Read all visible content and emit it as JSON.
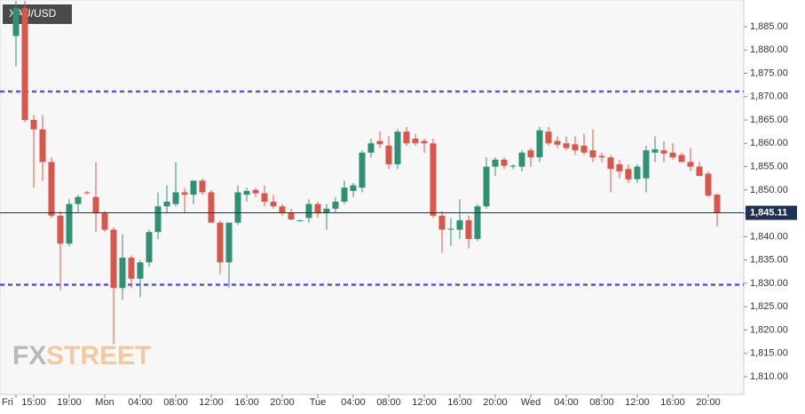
{
  "chart_data": {
    "type": "candlestick",
    "title": "XAU/USD",
    "watermark": {
      "fx": "FX",
      "street": "STREET"
    },
    "categories": [
      "Fri",
      null,
      "15:00",
      null,
      null,
      null,
      "19:00",
      null,
      null,
      null,
      "Mon",
      null,
      null,
      null,
      "04:00",
      null,
      null,
      null,
      "08:00",
      null,
      null,
      null,
      "12:00",
      null,
      null,
      null,
      "16:00",
      null,
      null,
      null,
      "20:00",
      null,
      null,
      null,
      "Tue",
      null,
      null,
      null,
      "04:00",
      null,
      null,
      null,
      "08:00",
      null,
      null,
      null,
      "12:00",
      null,
      null,
      null,
      "16:00",
      null,
      null,
      null,
      "20:00",
      null,
      null,
      null,
      "Wed",
      null,
      null,
      null,
      "04:00",
      null,
      null,
      null,
      "08:00",
      null,
      null,
      null,
      "12:00",
      null,
      null,
      null,
      "16:00",
      null,
      null,
      null,
      "20:00",
      null
    ],
    "open": [
      1883,
      1889,
      1865,
      1863,
      1856,
      1844.5,
      1838.5,
      1847,
      1849.5,
      1848.5,
      1845,
      1841.5,
      1829,
      1835.5,
      1831,
      1834.5,
      1841,
      1846.5,
      1847,
      1849.5,
      1849,
      1852,
      1849.5,
      1843,
      1834.5,
      1843,
      1849,
      1850,
      1849.3,
      1847.5,
      1846.5,
      1845.2,
      1843.4,
      1844,
      1847,
      1845,
      1846,
      1847.5,
      1849.8,
      1850.5,
      1858,
      1860.5,
      1859.5,
      1855.5,
      1862.5,
      1861,
      1860.5,
      1860,
      1844.5,
      1841.5,
      1841.5,
      1843.5,
      1839.5,
      1846.5,
      1855,
      1856.5,
      1855,
      1855,
      1858.5,
      1857,
      1862.5,
      1860.5,
      1860,
      1859.8,
      1859.5,
      1858.5,
      1857.3,
      1857,
      1855.5,
      1854.5,
      1852.3,
      1852.5,
      1858,
      1858.5,
      1858,
      1857.5,
      1856,
      1855,
      1853.5,
      1849
    ],
    "high": [
      1890.5,
      1890.5,
      1866,
      1866,
      1857,
      1845.5,
      1848,
      1849,
      1849.8,
      1856,
      1845.5,
      1842,
      1840.5,
      1836,
      1835,
      1841.5,
      1849.5,
      1851,
      1856,
      1850.5,
      1852,
      1852.5,
      1850,
      1843.5,
      1843,
      1851,
      1850.5,
      1850.5,
      1851,
      1849,
      1847,
      1846,
      1843.6,
      1848,
      1847.5,
      1847,
      1848.5,
      1852,
      1851.5,
      1858.5,
      1861,
      1862.5,
      1861.5,
      1863,
      1863.5,
      1862,
      1861,
      1861,
      1845.5,
      1844,
      1848,
      1844.5,
      1847,
      1857,
      1857,
      1857,
      1855.5,
      1858.5,
      1859,
      1863.5,
      1863.5,
      1861.5,
      1861.5,
      1861.5,
      1862,
      1863,
      1858,
      1857.5,
      1856.5,
      1855.5,
      1855.5,
      1859.5,
      1861.5,
      1860.5,
      1860,
      1858,
      1859,
      1856,
      1854,
      1849.3
    ],
    "low": [
      1876.5,
      1864.5,
      1850.5,
      1852,
      1844,
      1828.5,
      1838,
      1845,
      1849,
      1841,
      1841,
      1817,
      1826.5,
      1829,
      1827,
      1833.5,
      1839.5,
      1845,
      1846.5,
      1845,
      1847,
      1849,
      1843,
      1832,
      1829,
      1842.5,
      1847.5,
      1848.5,
      1846.5,
      1846,
      1844.5,
      1843.5,
      1843.3,
      1843,
      1844,
      1841.5,
      1845,
      1847,
      1848.5,
      1849.5,
      1857,
      1859,
      1854.5,
      1854.5,
      1859.5,
      1859.5,
      1858,
      1844,
      1836.5,
      1838,
      1839.5,
      1837.5,
      1839,
      1846,
      1853,
      1854.5,
      1854.5,
      1854,
      1855,
      1856,
      1859.5,
      1859,
      1858.5,
      1857.5,
      1857.5,
      1856,
      1856,
      1849.5,
      1852.5,
      1851.5,
      1851.5,
      1849.5,
      1856,
      1856,
      1856.5,
      1856,
      1854,
      1853.5,
      1848.5,
      1842.2
    ],
    "close": [
      1889,
      1865,
      1863,
      1856,
      1844.5,
      1838.5,
      1847,
      1848.5,
      1849.3,
      1845,
      1841.5,
      1829,
      1835.5,
      1831,
      1834.5,
      1841,
      1846.5,
      1847.5,
      1849.5,
      1849,
      1852,
      1849.5,
      1843,
      1834.5,
      1843,
      1849.5,
      1849.8,
      1849.3,
      1847.5,
      1846.5,
      1845.2,
      1843.7,
      1843.5,
      1847,
      1845,
      1846,
      1847.5,
      1850.5,
      1851,
      1858,
      1860,
      1859.8,
      1855.5,
      1862.5,
      1860,
      1860,
      1860,
      1844.5,
      1841.5,
      1841.7,
      1843.5,
      1839.5,
      1846.5,
      1855,
      1856.5,
      1855.2,
      1855.2,
      1858,
      1857,
      1862.8,
      1860,
      1859.7,
      1859,
      1858.5,
      1858,
      1857,
      1857,
      1854.5,
      1854,
      1852.3,
      1855,
      1858.5,
      1858.7,
      1857.8,
      1857,
      1856,
      1855,
      1853,
      1848.8,
      1845.11
    ],
    "up_color": "#2f9074",
    "down_color": "#d9574a",
    "ylim": [
      1806.2,
      1890.7
    ],
    "yticks": [
      {
        "value": 1810,
        "label": "1,810.00"
      },
      {
        "value": 1815,
        "label": "1,815.00"
      },
      {
        "value": 1820,
        "label": "1,820.00"
      },
      {
        "value": 1825,
        "label": "1,825.00"
      },
      {
        "value": 1830,
        "label": "1,830.00"
      },
      {
        "value": 1835,
        "label": "1,835.00"
      },
      {
        "value": 1840,
        "label": "1,840.00"
      },
      {
        "value": 1845,
        "label": "1,845.00"
      },
      {
        "value": 1850,
        "label": "1,850.00"
      },
      {
        "value": 1855,
        "label": "1,855.00"
      },
      {
        "value": 1860,
        "label": "1,860.00"
      },
      {
        "value": 1865,
        "label": "1,865.00"
      },
      {
        "value": 1870,
        "label": "1,870.00"
      },
      {
        "value": 1875,
        "label": "1,875.00"
      },
      {
        "value": 1880,
        "label": "1,880.00"
      },
      {
        "value": 1885,
        "label": "1,885.00"
      }
    ],
    "hlines": [
      {
        "value": 1871.1,
        "color": "#5555ee"
      },
      {
        "value": 1829.7,
        "color": "#5555ee"
      }
    ],
    "last_price": {
      "value": 1845.11,
      "label": "1,845.11",
      "color": "#1e3054"
    }
  }
}
